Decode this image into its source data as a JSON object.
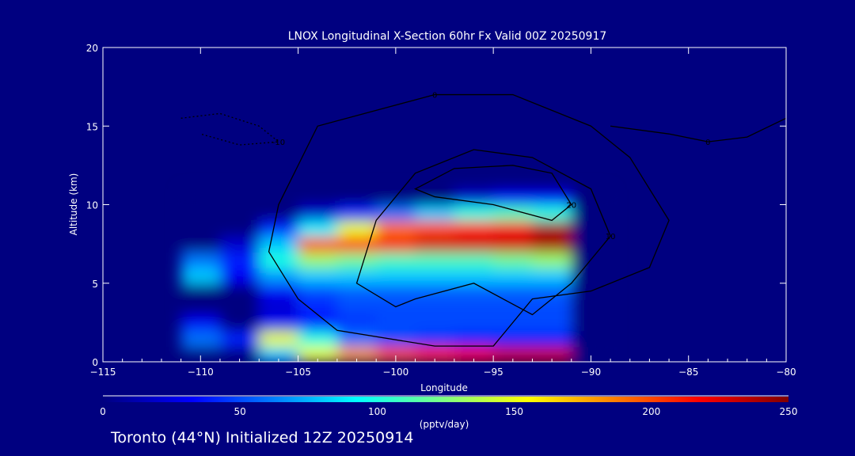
{
  "chart_data": {
    "type": "heatmap",
    "title": "LNOX Longitudinal X-Section 60hr  Fx Valid 00Z 20250917",
    "xlabel": "Longitude",
    "ylabel": "Altitude (km)",
    "xlim": [
      -115,
      -80
    ],
    "ylim": [
      0,
      20
    ],
    "xticks": [
      "-115",
      "-110",
      "-105",
      "-100",
      "-95",
      "-90",
      "-85",
      "-80"
    ],
    "yticks": [
      "0",
      "5",
      "10",
      "15",
      "20"
    ],
    "grid_lon": [
      -110,
      -108,
      -106,
      -104,
      -102,
      -100,
      -98,
      -96,
      -94,
      -92,
      -90
    ],
    "grid_alt": [
      0.5,
      1.5,
      2.5,
      3.5,
      4.5,
      5.5,
      6.5,
      7.5,
      8.5,
      9.5,
      10.5
    ],
    "values": [
      [
        0,
        0,
        80,
        150,
        180,
        200,
        210,
        220,
        230,
        230,
        0
      ],
      [
        60,
        40,
        150,
        100,
        60,
        50,
        45,
        40,
        40,
        40,
        0
      ],
      [
        30,
        0,
        30,
        40,
        45,
        50,
        50,
        50,
        50,
        50,
        0
      ],
      [
        0,
        0,
        20,
        40,
        50,
        50,
        50,
        50,
        50,
        50,
        0
      ],
      [
        0,
        0,
        30,
        50,
        55,
        55,
        55,
        55,
        55,
        55,
        0
      ],
      [
        80,
        30,
        70,
        80,
        80,
        80,
        80,
        80,
        80,
        80,
        0
      ],
      [
        60,
        40,
        100,
        130,
        120,
        110,
        110,
        110,
        120,
        130,
        0
      ],
      [
        0,
        20,
        80,
        200,
        210,
        220,
        230,
        230,
        230,
        240,
        0
      ],
      [
        0,
        0,
        40,
        90,
        150,
        190,
        200,
        210,
        220,
        240,
        0
      ],
      [
        0,
        0,
        0,
        20,
        40,
        60,
        80,
        100,
        110,
        100,
        0
      ],
      [
        0,
        0,
        0,
        0,
        0,
        0,
        0,
        20,
        30,
        30,
        0
      ]
    ],
    "colorbar": {
      "label": "(pptv/day)",
      "range": [
        0,
        250
      ],
      "ticks": [
        "0",
        "50",
        "100",
        "150",
        "200",
        "250"
      ]
    },
    "contours": [
      {
        "label": "0",
        "points": [
          [
            -95,
            1
          ],
          [
            -93,
            4
          ],
          [
            -90,
            4.5
          ],
          [
            -87,
            6
          ],
          [
            -86,
            9
          ],
          [
            -88,
            13
          ],
          [
            -90,
            15
          ],
          [
            -94,
            17
          ],
          [
            -98,
            17
          ],
          [
            -101,
            16
          ],
          [
            -104,
            15
          ],
          [
            -106,
            10
          ],
          [
            -106.5,
            7
          ],
          [
            -105,
            4
          ],
          [
            -103,
            2
          ],
          [
            -98,
            1
          ]
        ]
      },
      {
        "label": "10",
        "points": [
          [
            -102,
            5
          ],
          [
            -101,
            9
          ],
          [
            -99,
            12
          ],
          [
            -96,
            13.5
          ],
          [
            -93,
            13
          ],
          [
            -90,
            11
          ],
          [
            -89,
            8
          ],
          [
            -91,
            5
          ],
          [
            -93,
            3
          ],
          [
            -96,
            5
          ],
          [
            -99,
            4
          ],
          [
            -100,
            3.5
          ]
        ]
      },
      {
        "label": "20",
        "points": [
          [
            -99,
            11
          ],
          [
            -97,
            12.3
          ],
          [
            -94,
            12.5
          ],
          [
            -92,
            12
          ],
          [
            -91,
            10
          ],
          [
            -92,
            9
          ],
          [
            -95,
            10
          ],
          [
            -98,
            10.5
          ]
        ]
      },
      {
        "label": "0",
        "points": [
          [
            -89,
            15
          ],
          [
            -86,
            14.5
          ],
          [
            -84,
            14
          ],
          [
            -82,
            14.3
          ],
          [
            -80,
            15.5
          ]
        ]
      },
      {
        "label": "-10",
        "points": [
          [
            -111,
            15.5
          ],
          [
            -109,
            15.8
          ],
          [
            -107,
            15
          ],
          [
            -106,
            14
          ],
          [
            -108,
            13.8
          ],
          [
            -110,
            14.5
          ]
        ]
      }
    ]
  },
  "footer": "Toronto (44°N) Initialized 12Z 20250914"
}
